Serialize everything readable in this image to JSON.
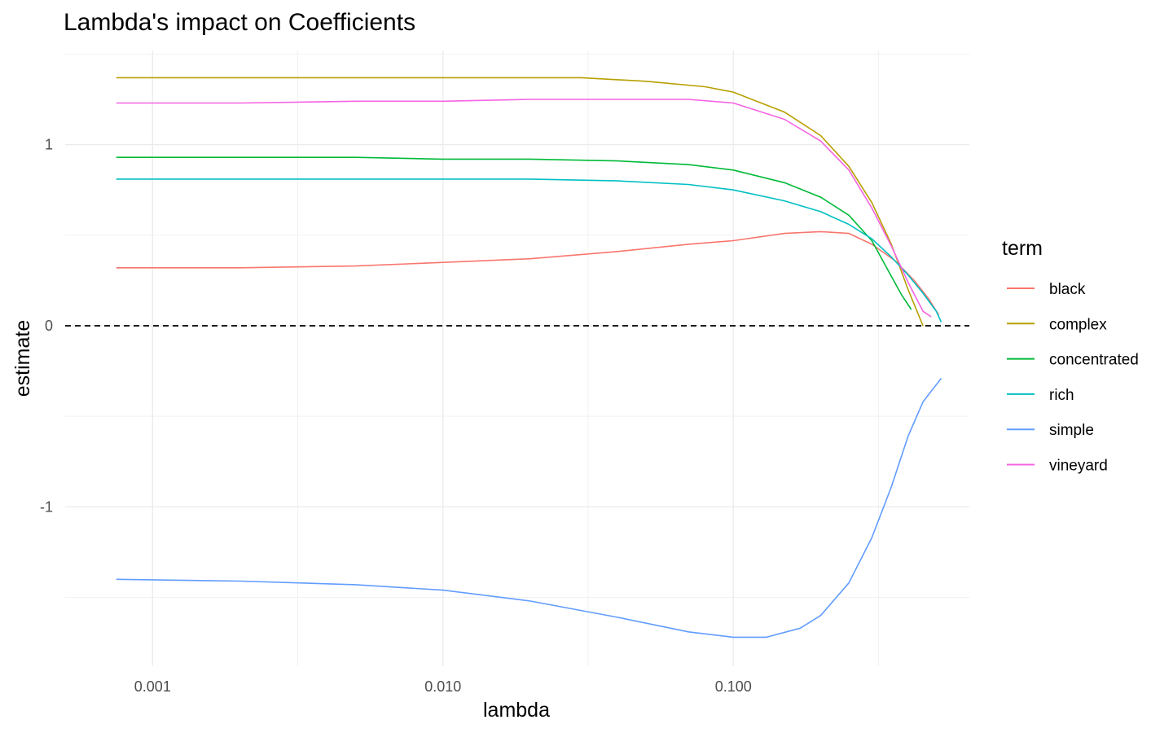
{
  "chart_data": {
    "type": "line",
    "title": "Lambda's impact on Coefficients",
    "xlabel": "lambda",
    "ylabel": "estimate",
    "x_scale": "log10",
    "x_ticks": [
      0.001,
      0.01,
      0.1
    ],
    "x_tick_labels": [
      "0.001",
      "0.010",
      "0.100"
    ],
    "y_ticks": [
      -1,
      0,
      1
    ],
    "y_tick_labels": [
      "-1",
      "0",
      "1"
    ],
    "xlim": [
      0.0005,
      0.65
    ],
    "ylim": [
      -1.88,
      1.52
    ],
    "reference_line": {
      "y": 0,
      "style": "dashed",
      "color": "#000000"
    },
    "grid": true,
    "legend": {
      "title": "term",
      "position": "right"
    },
    "series": [
      {
        "name": "black",
        "color": "#F8766D",
        "points": [
          [
            0.00075,
            0.32
          ],
          [
            0.002,
            0.32
          ],
          [
            0.005,
            0.33
          ],
          [
            0.01,
            0.35
          ],
          [
            0.02,
            0.37
          ],
          [
            0.04,
            0.41
          ],
          [
            0.07,
            0.45
          ],
          [
            0.1,
            0.47
          ],
          [
            0.15,
            0.51
          ],
          [
            0.2,
            0.52
          ],
          [
            0.25,
            0.51
          ],
          [
            0.3,
            0.45
          ],
          [
            0.36,
            0.36
          ],
          [
            0.42,
            0.25
          ],
          [
            0.47,
            0.15
          ],
          [
            0.51,
            0.06
          ]
        ]
      },
      {
        "name": "complex",
        "color": "#B79F00",
        "points": [
          [
            0.00075,
            1.37
          ],
          [
            0.002,
            1.37
          ],
          [
            0.005,
            1.37
          ],
          [
            0.01,
            1.37
          ],
          [
            0.02,
            1.37
          ],
          [
            0.03,
            1.37
          ],
          [
            0.05,
            1.35
          ],
          [
            0.08,
            1.32
          ],
          [
            0.1,
            1.29
          ],
          [
            0.15,
            1.18
          ],
          [
            0.2,
            1.05
          ],
          [
            0.25,
            0.88
          ],
          [
            0.3,
            0.68
          ],
          [
            0.35,
            0.45
          ],
          [
            0.4,
            0.2
          ],
          [
            0.45,
            0.0
          ]
        ]
      },
      {
        "name": "concentrated",
        "color": "#00BA38",
        "points": [
          [
            0.00075,
            0.93
          ],
          [
            0.002,
            0.93
          ],
          [
            0.005,
            0.93
          ],
          [
            0.01,
            0.92
          ],
          [
            0.02,
            0.92
          ],
          [
            0.04,
            0.91
          ],
          [
            0.07,
            0.89
          ],
          [
            0.1,
            0.86
          ],
          [
            0.15,
            0.79
          ],
          [
            0.2,
            0.71
          ],
          [
            0.25,
            0.61
          ],
          [
            0.3,
            0.47
          ],
          [
            0.34,
            0.31
          ],
          [
            0.38,
            0.17
          ],
          [
            0.41,
            0.09
          ]
        ]
      },
      {
        "name": "rich",
        "color": "#00BFC4",
        "points": [
          [
            0.00075,
            0.81
          ],
          [
            0.002,
            0.81
          ],
          [
            0.005,
            0.81
          ],
          [
            0.01,
            0.81
          ],
          [
            0.02,
            0.81
          ],
          [
            0.04,
            0.8
          ],
          [
            0.07,
            0.78
          ],
          [
            0.1,
            0.75
          ],
          [
            0.15,
            0.69
          ],
          [
            0.2,
            0.63
          ],
          [
            0.25,
            0.56
          ],
          [
            0.3,
            0.48
          ],
          [
            0.35,
            0.38
          ],
          [
            0.4,
            0.28
          ],
          [
            0.45,
            0.18
          ],
          [
            0.5,
            0.08
          ],
          [
            0.52,
            0.02
          ]
        ]
      },
      {
        "name": "simple",
        "color": "#619CFF",
        "points": [
          [
            0.00075,
            -1.4
          ],
          [
            0.002,
            -1.41
          ],
          [
            0.005,
            -1.43
          ],
          [
            0.01,
            -1.46
          ],
          [
            0.02,
            -1.52
          ],
          [
            0.04,
            -1.61
          ],
          [
            0.07,
            -1.69
          ],
          [
            0.1,
            -1.72
          ],
          [
            0.13,
            -1.72
          ],
          [
            0.17,
            -1.67
          ],
          [
            0.2,
            -1.6
          ],
          [
            0.25,
            -1.42
          ],
          [
            0.3,
            -1.17
          ],
          [
            0.35,
            -0.89
          ],
          [
            0.4,
            -0.61
          ],
          [
            0.45,
            -0.42
          ],
          [
            0.52,
            -0.29
          ]
        ]
      },
      {
        "name": "vineyard",
        "color": "#F564E3",
        "points": [
          [
            0.00075,
            1.23
          ],
          [
            0.002,
            1.23
          ],
          [
            0.005,
            1.24
          ],
          [
            0.01,
            1.24
          ],
          [
            0.02,
            1.25
          ],
          [
            0.04,
            1.25
          ],
          [
            0.07,
            1.25
          ],
          [
            0.1,
            1.23
          ],
          [
            0.15,
            1.14
          ],
          [
            0.2,
            1.02
          ],
          [
            0.25,
            0.86
          ],
          [
            0.3,
            0.65
          ],
          [
            0.35,
            0.44
          ],
          [
            0.4,
            0.24
          ],
          [
            0.45,
            0.08
          ],
          [
            0.48,
            0.05
          ]
        ]
      }
    ]
  }
}
